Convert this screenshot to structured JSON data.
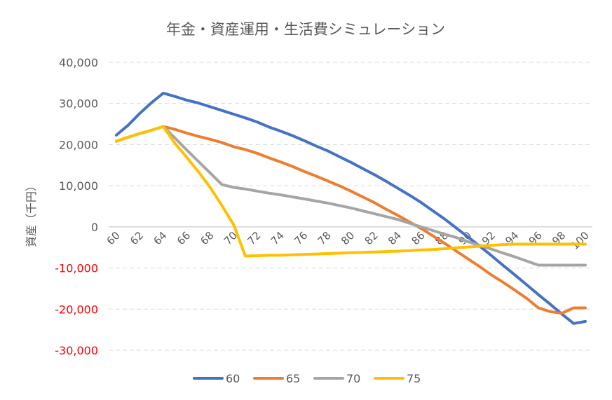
{
  "chart_data": {
    "type": "line",
    "title": "年金・資産運用・生活費シミュレーション",
    "ylabel": "資産（千円）",
    "xlabel": "",
    "ylim": [
      -30000,
      40000
    ],
    "yticks": [
      40000,
      30000,
      20000,
      10000,
      0,
      -10000,
      -20000,
      -30000
    ],
    "ytick_labels": [
      "40,000",
      "30,000",
      "20,000",
      "10,000",
      "0",
      "-10,000",
      "-20,000",
      "-30,000"
    ],
    "negative_label_color": "#ff0000",
    "x": [
      60,
      61,
      62,
      63,
      64,
      65,
      66,
      67,
      68,
      69,
      70,
      71,
      72,
      73,
      74,
      75,
      76,
      77,
      78,
      79,
      80,
      81,
      82,
      83,
      84,
      85,
      86,
      87,
      88,
      89,
      90,
      91,
      92,
      93,
      94,
      95,
      96,
      97,
      98,
      99,
      100
    ],
    "xtick_labels": [
      "60",
      "62",
      "64",
      "66",
      "68",
      "70",
      "72",
      "74",
      "76",
      "78",
      "80",
      "82",
      "84",
      "86",
      "88",
      "90",
      "92",
      "94",
      "96",
      "98",
      "100"
    ],
    "grid": "horizontal-dashed",
    "legend_position": "bottom",
    "series": [
      {
        "name": "60",
        "color": "#4472c4",
        "values": [
          22300,
          24700,
          27600,
          30200,
          32500,
          31700,
          30800,
          30100,
          29200,
          28300,
          27400,
          26500,
          25500,
          24300,
          23300,
          22200,
          21000,
          19700,
          18500,
          17100,
          15700,
          14200,
          12700,
          11100,
          9400,
          7700,
          5900,
          3900,
          1900,
          -300,
          -2500,
          -4700,
          -7000,
          -9400,
          -11700,
          -14100,
          -16500,
          -18800,
          -21200,
          -23500,
          -23000
        ]
      },
      {
        "name": "65",
        "color": "#ed7d31",
        "values": [
          20800,
          21800,
          22700,
          23500,
          24400,
          23700,
          22800,
          22000,
          21300,
          20500,
          19500,
          18800,
          17900,
          16800,
          15800,
          14700,
          13500,
          12400,
          11200,
          10000,
          8700,
          7300,
          5900,
          4300,
          2800,
          1200,
          -400,
          -2200,
          -4000,
          -5900,
          -7800,
          -9700,
          -11700,
          -13500,
          -15400,
          -17400,
          -19700,
          -20600,
          -21000,
          -19700,
          -19700
        ]
      },
      {
        "name": "70",
        "color": "#a5a5a5",
        "values": [
          20800,
          21800,
          22700,
          23500,
          24400,
          21600,
          18700,
          15900,
          13100,
          10300,
          9600,
          9200,
          8700,
          8200,
          7800,
          7300,
          6800,
          6300,
          5800,
          5200,
          4600,
          3900,
          3200,
          2500,
          1800,
          900,
          0,
          -900,
          -1800,
          -2600,
          -3600,
          -4500,
          -5400,
          -6400,
          -7300,
          -8300,
          -9300,
          -9300,
          -9300,
          -9300,
          -9300
        ]
      },
      {
        "name": "75",
        "color": "#ffc000",
        "values": [
          20800,
          21800,
          22700,
          23500,
          24400,
          20300,
          16900,
          13400,
          9600,
          5200,
          500,
          -7100,
          -7000,
          -6900,
          -6900,
          -6800,
          -6700,
          -6600,
          -6500,
          -6400,
          -6300,
          -6200,
          -6100,
          -6000,
          -5900,
          -5800,
          -5600,
          -5500,
          -5300,
          -5100,
          -4900,
          -4700,
          -4500,
          -4300,
          -4200,
          -4200,
          -4200,
          -4200,
          -4200,
          -4200,
          -4200
        ]
      }
    ]
  }
}
